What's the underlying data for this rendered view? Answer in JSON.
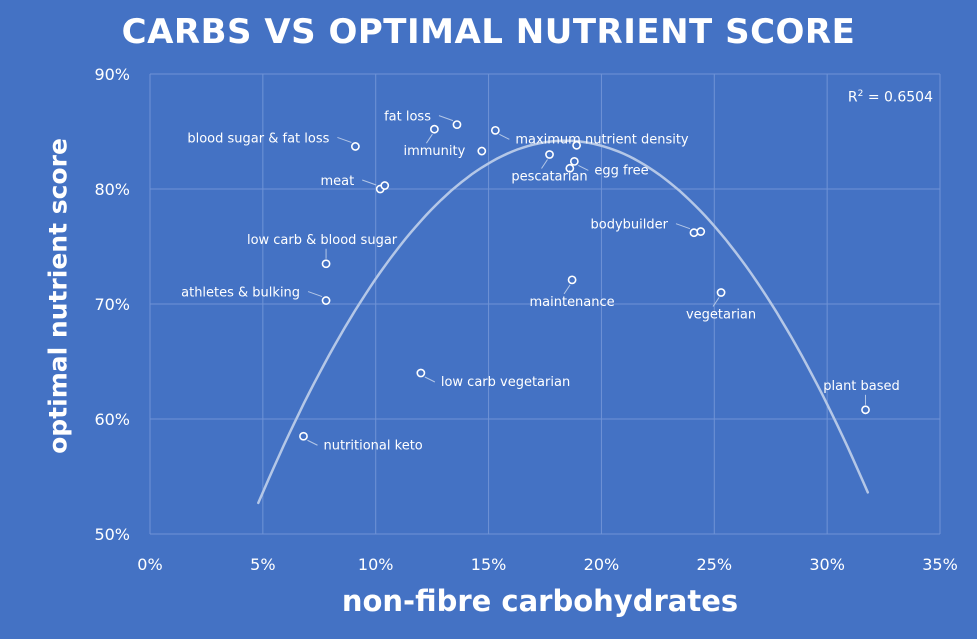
{
  "chart_data": {
    "type": "scatter",
    "title": "CARBS VS OPTIMAL NUTRIENT SCORE",
    "xlabel": "non-fibre carbohydrates",
    "ylabel": "optimal nutrient  score",
    "xlim": [
      0,
      35
    ],
    "ylim": [
      50,
      90
    ],
    "x_ticks": [
      0,
      5,
      10,
      15,
      20,
      25,
      30,
      35
    ],
    "x_tick_labels": [
      "0%",
      "5%",
      "10%",
      "15%",
      "20%",
      "25%",
      "30%",
      "35%"
    ],
    "y_ticks": [
      50,
      60,
      70,
      80,
      90
    ],
    "y_tick_labels": [
      "50%",
      "60%",
      "70%",
      "80%",
      "90%"
    ],
    "grid": true,
    "trendline": {
      "type": "polynomial",
      "order": 2,
      "label": "R² = 0.6504",
      "r2_prefix": "R",
      "r2_sup": "2",
      "r2_value": " = 0.6504",
      "x_range": [
        4.8,
        31.8
      ],
      "y_at_start": 52.7,
      "peak_x": 18.4,
      "peak_y": 84.2
    },
    "points": [
      {
        "label": "blood sugar & fat loss",
        "x": 9.1,
        "y": 83.7,
        "anchor": "left"
      },
      {
        "label": "meat",
        "x": 10.2,
        "y": 80.0,
        "anchor": "left"
      },
      {
        "label": "",
        "x": 10.4,
        "y": 80.3,
        "anchor": "none"
      },
      {
        "label": "fat loss",
        "x": 13.6,
        "y": 85.6,
        "anchor": "left"
      },
      {
        "label": "immunity",
        "x": 12.6,
        "y": 85.2,
        "anchor": "below"
      },
      {
        "label": "maximum nutrient density",
        "x": 15.3,
        "y": 85.1,
        "anchor": "right"
      },
      {
        "label": "",
        "x": 14.7,
        "y": 83.3,
        "anchor": "none"
      },
      {
        "label": "pescatarian",
        "x": 17.7,
        "y": 83.0,
        "anchor": "below"
      },
      {
        "label": "egg free",
        "x": 18.8,
        "y": 82.4,
        "anchor": "right"
      },
      {
        "label": "",
        "x": 18.9,
        "y": 83.8,
        "anchor": "none"
      },
      {
        "label": "",
        "x": 18.6,
        "y": 81.8,
        "anchor": "none"
      },
      {
        "label": "low carb & blood sugar",
        "x": 7.8,
        "y": 73.5,
        "anchor": "above"
      },
      {
        "label": "athletes & bulking",
        "x": 7.8,
        "y": 70.3,
        "anchor": "left"
      },
      {
        "label": "maintenance",
        "x": 18.7,
        "y": 72.1,
        "anchor": "below"
      },
      {
        "label": "bodybuilder",
        "x": 24.1,
        "y": 76.2,
        "anchor": "left"
      },
      {
        "label": "",
        "x": 24.4,
        "y": 76.3,
        "anchor": "none"
      },
      {
        "label": "vegetarian",
        "x": 25.3,
        "y": 71.0,
        "anchor": "below"
      },
      {
        "label": "low carb vegetarian",
        "x": 12.0,
        "y": 64.0,
        "anchor": "right"
      },
      {
        "label": "nutritional keto",
        "x": 6.8,
        "y": 58.5,
        "anchor": "right"
      },
      {
        "label": "plant based",
        "x": 31.7,
        "y": 60.8,
        "anchor": "above"
      }
    ]
  },
  "colors": {
    "background": "#4472c4",
    "gridline": "#6f93d6",
    "trendline": "#b4c7e7",
    "marker_stroke": "#ffffff",
    "text": "#ffffff"
  }
}
